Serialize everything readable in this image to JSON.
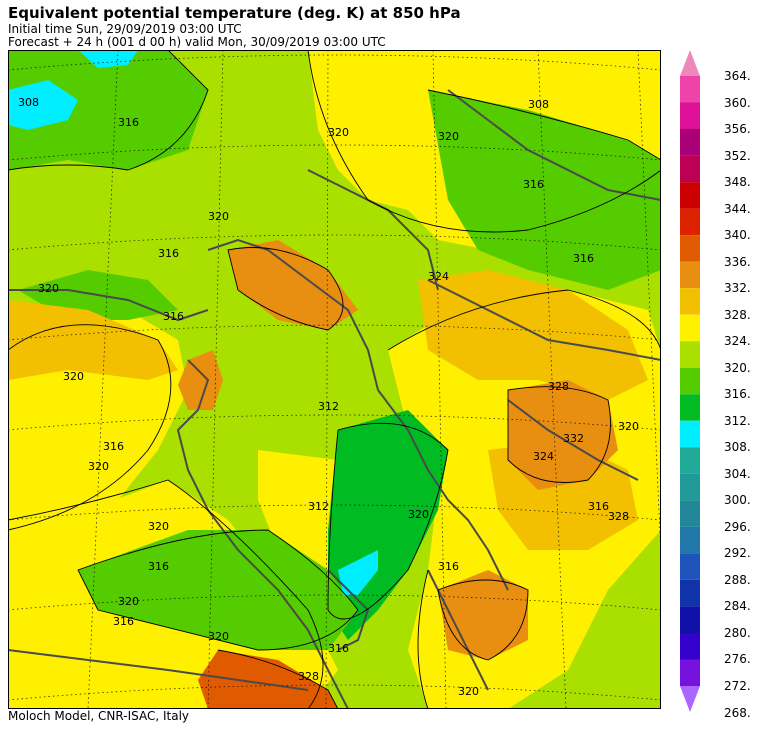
{
  "header": {
    "title": "Equivalent potential temperature (deg. K) at 850 hPa",
    "initial_time": "Initial time  Sun, 29/09/2019  03:00 UTC",
    "forecast": "Forecast  +  24 h  (001 d 00 h)  valid Mon, 30/09/2019 03:00 UTC"
  },
  "footer": "Moloch Model, CNR-ISAC, Italy",
  "colorbar": {
    "levels": [
      "364.",
      "360.",
      "356.",
      "352.",
      "348.",
      "344.",
      "340.",
      "336.",
      "332.",
      "328.",
      "324.",
      "320.",
      "316.",
      "312.",
      "308.",
      "304.",
      "300.",
      "296.",
      "292.",
      "288.",
      "284.",
      "280.",
      "276.",
      "272.",
      "268."
    ],
    "colors": [
      "#ee88bb",
      "#ee44aa",
      "#dd1199",
      "#aa0077",
      "#bb0055",
      "#cc0000",
      "#dd2200",
      "#e05a00",
      "#e88e10",
      "#f2c000",
      "#fff000",
      "#aae000",
      "#55cc00",
      "#00bb22",
      "#00eeff",
      "#22aa99",
      "#229999",
      "#228899",
      "#2277aa",
      "#1f55bb",
      "#1133aa",
      "#1111aa",
      "#3300cc",
      "#7711dd",
      "#aa66ff"
    ]
  },
  "map": {
    "contour_labels": [
      "308",
      "316",
      "320",
      "308",
      "316",
      "320",
      "316",
      "316",
      "320",
      "316",
      "312",
      "316",
      "320",
      "320",
      "316",
      "320",
      "316",
      "328",
      "320",
      "320",
      "316",
      "312",
      "328",
      "332",
      "324",
      "320",
      "316",
      "316",
      "320",
      "328",
      "320",
      "324",
      "320"
    ]
  }
}
